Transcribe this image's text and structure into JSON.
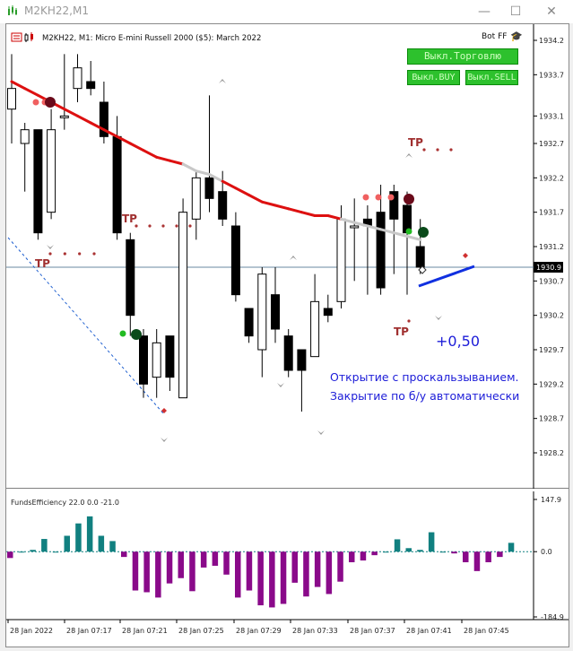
{
  "window": {
    "title": "M2KH22,M1",
    "minimize_icon": "minimize-icon",
    "maximize_icon": "maximize-icon",
    "close_icon": "close-icon"
  },
  "chart": {
    "header": "M2KH22, M1:  Micro E-mini Russell 2000 ($5): March 2022",
    "bot_label": "Bot FF",
    "buttons": {
      "trade": "Выкл.Торговлю",
      "buy": "Выкл.BUY",
      "sell": "Выкл.SELL"
    },
    "profit_label": "+0,50",
    "note_line1": "Открытие с проскальзыванием.",
    "note_line2": "Закрытие по б/у автоматически",
    "tp_label": "TP",
    "current_price": "1930.9",
    "colors": {
      "bull": "#ffffff",
      "bear": "#000000",
      "ma_red": "#dd1010",
      "ma_gray": "#c8c8c8",
      "trade_line": "#1030e0",
      "osc_pos": "#118080",
      "osc_neg": "#8a0a8a",
      "tp_dot": "#a33",
      "dot_salmon": "#f06060",
      "dot_green": "#22bb22"
    }
  },
  "chart_data": [
    {
      "type": "candlestick",
      "title": "M2KH22, M1: Micro E-mini Russell 2000 ($5): March 2022",
      "y_ticks": [
        "1934.2",
        "1933.7",
        "1933.1",
        "1932.7",
        "1932.2",
        "1931.7",
        "1931.2",
        "1930.7",
        "1930.2",
        "1929.7",
        "1929.2",
        "1928.7",
        "1928.2"
      ],
      "x_ticks": [
        "28 Jan 2022",
        "28 Jan 07:17",
        "28 Jan 07:21",
        "28 Jan 07:25",
        "28 Jan 07:29",
        "28 Jan 07:33",
        "28 Jan 07:37",
        "28 Jan 07:41",
        "28 Jan 07:45"
      ],
      "ylim": [
        1927.9,
        1934.4
      ],
      "current_price": 1930.9,
      "candles": [
        {
          "o": 1933.2,
          "h": 1934.0,
          "l": 1932.7,
          "c": 1933.5
        },
        {
          "o": 1932.7,
          "h": 1933.0,
          "l": 1932.0,
          "c": 1932.9
        },
        {
          "o": 1932.9,
          "h": 1932.9,
          "l": 1931.3,
          "c": 1931.4
        },
        {
          "o": 1931.7,
          "h": 1933.2,
          "l": 1931.6,
          "c": 1932.9
        },
        {
          "o": 1933.1,
          "h": 1934.0,
          "l": 1932.9,
          "c": 1933.1
        },
        {
          "o": 1933.5,
          "h": 1934.0,
          "l": 1933.3,
          "c": 1933.8
        },
        {
          "o": 1933.6,
          "h": 1933.9,
          "l": 1933.4,
          "c": 1933.5
        },
        {
          "o": 1933.3,
          "h": 1933.6,
          "l": 1932.7,
          "c": 1932.8
        },
        {
          "o": 1932.8,
          "h": 1933.1,
          "l": 1931.3,
          "c": 1931.4
        },
        {
          "o": 1931.3,
          "h": 1931.4,
          "l": 1929.9,
          "c": 1930.2
        },
        {
          "o": 1929.9,
          "h": 1930.0,
          "l": 1929.0,
          "c": 1929.2
        },
        {
          "o": 1929.3,
          "h": 1930.0,
          "l": 1929.0,
          "c": 1929.8
        },
        {
          "o": 1929.9,
          "h": 1929.9,
          "l": 1929.1,
          "c": 1929.3
        },
        {
          "o": 1929.0,
          "h": 1931.9,
          "l": 1929.0,
          "c": 1931.7
        },
        {
          "o": 1931.6,
          "h": 1932.3,
          "l": 1931.3,
          "c": 1932.2
        },
        {
          "o": 1932.2,
          "h": 1933.4,
          "l": 1931.7,
          "c": 1931.9
        },
        {
          "o": 1932.0,
          "h": 1932.3,
          "l": 1931.5,
          "c": 1931.6
        },
        {
          "o": 1931.5,
          "h": 1931.7,
          "l": 1930.4,
          "c": 1930.5
        },
        {
          "o": 1930.3,
          "h": 1930.3,
          "l": 1929.8,
          "c": 1929.9
        },
        {
          "o": 1929.7,
          "h": 1930.9,
          "l": 1929.3,
          "c": 1930.8
        },
        {
          "o": 1930.5,
          "h": 1930.9,
          "l": 1929.8,
          "c": 1930.0
        },
        {
          "o": 1929.9,
          "h": 1930.0,
          "l": 1929.3,
          "c": 1929.4
        },
        {
          "o": 1929.7,
          "h": 1929.7,
          "l": 1928.8,
          "c": 1929.4
        },
        {
          "o": 1929.6,
          "h": 1930.8,
          "l": 1929.6,
          "c": 1930.4
        },
        {
          "o": 1930.3,
          "h": 1930.5,
          "l": 1930.1,
          "c": 1930.2
        },
        {
          "o": 1930.4,
          "h": 1931.8,
          "l": 1930.3,
          "c": 1931.6
        },
        {
          "o": 1931.5,
          "h": 1931.9,
          "l": 1930.7,
          "c": 1931.5
        },
        {
          "o": 1931.6,
          "h": 1931.8,
          "l": 1930.5,
          "c": 1931.5
        },
        {
          "o": 1931.7,
          "h": 1932.1,
          "l": 1930.5,
          "c": 1930.6
        },
        {
          "o": 1932.0,
          "h": 1932.1,
          "l": 1930.8,
          "c": 1931.6
        },
        {
          "o": 1931.8,
          "h": 1932.0,
          "l": 1930.5,
          "c": 1931.4
        },
        {
          "o": 1931.2,
          "h": 1931.6,
          "l": 1930.8,
          "c": 1930.9
        }
      ],
      "ma": {
        "name": "",
        "values": [
          1933.6,
          1933.5,
          1933.4,
          1933.3,
          1933.2,
          1933.1,
          1933.0,
          1932.9,
          1932.8,
          1932.7,
          1932.6,
          1932.5,
          1932.45,
          1932.4,
          1932.3,
          1932.25,
          1932.15,
          1932.05,
          1931.95,
          1931.85,
          1931.8,
          1931.75,
          1931.7,
          1931.65,
          1931.65,
          1931.6,
          1931.55,
          1931.5,
          1931.45,
          1931.4,
          1931.35,
          1931.3
        ]
      }
    },
    {
      "type": "bar",
      "title": "FundsEfficiency 22.0 0.0 -21.0",
      "y_ticks": [
        "147.9",
        "0.0",
        "-184.9"
      ],
      "ylim": [
        -184.9,
        147.9
      ],
      "values": [
        -18,
        0,
        5,
        36,
        0,
        45,
        80,
        100,
        45,
        30,
        -15,
        -110,
        -115,
        -130,
        -90,
        -75,
        -112,
        -45,
        -40,
        -65,
        -130,
        -110,
        -152,
        -158,
        -148,
        -88,
        -127,
        -100,
        -120,
        -85,
        -30,
        -25,
        -10,
        0,
        35,
        10,
        5,
        55,
        0,
        -5,
        -30,
        -55,
        -30,
        -15,
        25
      ]
    }
  ]
}
